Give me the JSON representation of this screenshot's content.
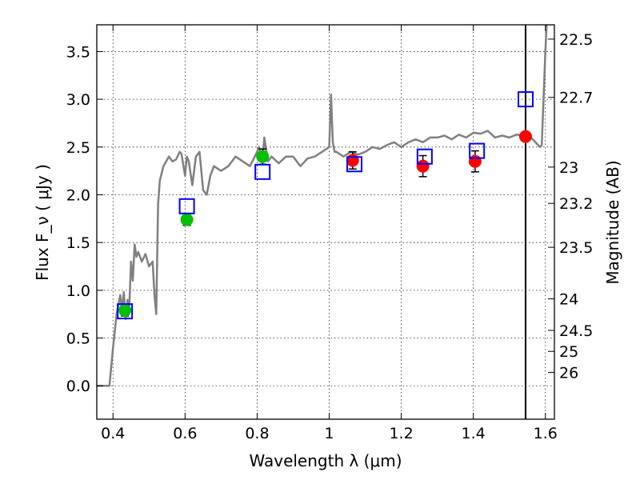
{
  "chart_data": {
    "type": "scatter",
    "xlabel": "Wavelength  λ (μm)",
    "ylabel": "Flux  F_ν  ( μJy )",
    "ylabel_right": "Magnitude (AB)",
    "xlim": [
      0.355,
      1.625
    ],
    "ylim": [
      -0.35,
      3.78
    ],
    "grid": true,
    "x_ticks": [
      0.4,
      0.6,
      0.8,
      1.0,
      1.2,
      1.4,
      1.6
    ],
    "x_tick_labels": [
      "0.4",
      "0.6",
      "0.8",
      "1",
      "1.2",
      "1.4",
      "1.6"
    ],
    "y_ticks": [
      0.0,
      0.5,
      1.0,
      1.5,
      2.0,
      2.5,
      3.0,
      3.5
    ],
    "y_tick_labels": [
      "0.0",
      "0.5",
      "1.0",
      "1.5",
      "2.0",
      "2.5",
      "3.0",
      "3.5"
    ],
    "right_axis_ticks": [
      {
        "flux": 3.63,
        "label": "22.5"
      },
      {
        "flux": 3.02,
        "label": "22.7"
      },
      {
        "flux": 2.29,
        "label": "23"
      },
      {
        "flux": 1.91,
        "label": "23.2"
      },
      {
        "flux": 1.45,
        "label": "23.5"
      },
      {
        "flux": 0.91,
        "label": "24"
      },
      {
        "flux": 0.58,
        "label": "24.5"
      },
      {
        "flux": 0.36,
        "label": "25"
      },
      {
        "flux": 0.14,
        "label": "26"
      }
    ],
    "vertical_line_x": 1.545,
    "series": [
      {
        "kind": "line",
        "color": "#808080",
        "x": [
          0.355,
          0.39,
          0.4,
          0.41,
          0.42,
          0.425,
          0.43,
          0.435,
          0.44,
          0.445,
          0.45,
          0.455,
          0.46,
          0.465,
          0.47,
          0.48,
          0.49,
          0.5,
          0.51,
          0.515,
          0.52,
          0.525,
          0.53,
          0.54,
          0.555,
          0.565,
          0.575,
          0.585,
          0.59,
          0.6,
          0.605,
          0.61,
          0.62,
          0.63,
          0.64,
          0.65,
          0.66,
          0.67,
          0.68,
          0.7,
          0.72,
          0.74,
          0.76,
          0.78,
          0.8,
          0.805,
          0.815,
          0.82,
          0.83,
          0.84,
          0.86,
          0.88,
          0.9,
          0.92,
          0.94,
          0.96,
          0.98,
          1.0,
          1.005,
          1.01,
          1.015,
          1.02,
          1.04,
          1.06,
          1.08,
          1.1,
          1.12,
          1.14,
          1.16,
          1.18,
          1.2,
          1.22,
          1.24,
          1.26,
          1.28,
          1.3,
          1.32,
          1.34,
          1.36,
          1.38,
          1.4,
          1.42,
          1.44,
          1.46,
          1.48,
          1.5,
          1.52,
          1.54,
          1.56,
          1.58,
          1.585,
          1.59,
          1.6,
          1.605,
          1.61
        ],
        "y": [
          0.0,
          0.0,
          0.4,
          0.75,
          0.95,
          0.8,
          0.98,
          0.7,
          0.9,
          0.8,
          1.3,
          1.1,
          1.48,
          1.35,
          1.4,
          1.3,
          1.38,
          1.25,
          1.3,
          0.95,
          0.75,
          1.9,
          2.15,
          2.3,
          2.4,
          2.35,
          2.37,
          2.45,
          2.43,
          2.2,
          2.4,
          2.35,
          2.1,
          2.4,
          2.45,
          2.05,
          2.0,
          2.2,
          2.3,
          2.25,
          2.3,
          2.4,
          2.35,
          2.3,
          2.45,
          2.5,
          2.38,
          2.6,
          2.35,
          2.4,
          2.33,
          2.4,
          2.4,
          2.3,
          2.38,
          2.4,
          2.45,
          2.5,
          3.05,
          2.55,
          2.45,
          2.45,
          2.4,
          2.45,
          2.42,
          2.45,
          2.5,
          2.48,
          2.52,
          2.55,
          2.5,
          2.55,
          2.58,
          2.55,
          2.6,
          2.6,
          2.62,
          2.58,
          2.63,
          2.6,
          2.65,
          2.64,
          2.67,
          2.6,
          2.62,
          2.6,
          2.63,
          2.62,
          2.6,
          2.52,
          2.5,
          2.52,
          3.5,
          3.9,
          3.9
        ]
      },
      {
        "kind": "model_squares",
        "color": "#0000ff",
        "x": [
          0.433,
          0.605,
          0.815,
          1.07,
          1.265,
          1.41,
          1.545
        ],
        "y": [
          0.78,
          1.88,
          2.24,
          2.32,
          2.4,
          2.46,
          3.0
        ]
      },
      {
        "kind": "obs_green",
        "color": "#00c000",
        "x": [
          0.433,
          0.605,
          0.815
        ],
        "y": [
          0.79,
          1.74,
          2.4
        ],
        "err": [
          0.06,
          0.06,
          0.08
        ]
      },
      {
        "kind": "obs_red",
        "color": "#ff0000",
        "x": [
          1.065,
          1.26,
          1.405,
          1.545
        ],
        "y": [
          2.36,
          2.3,
          2.35,
          2.61
        ],
        "err": [
          0.09,
          0.11,
          0.11,
          0.0
        ]
      }
    ]
  }
}
